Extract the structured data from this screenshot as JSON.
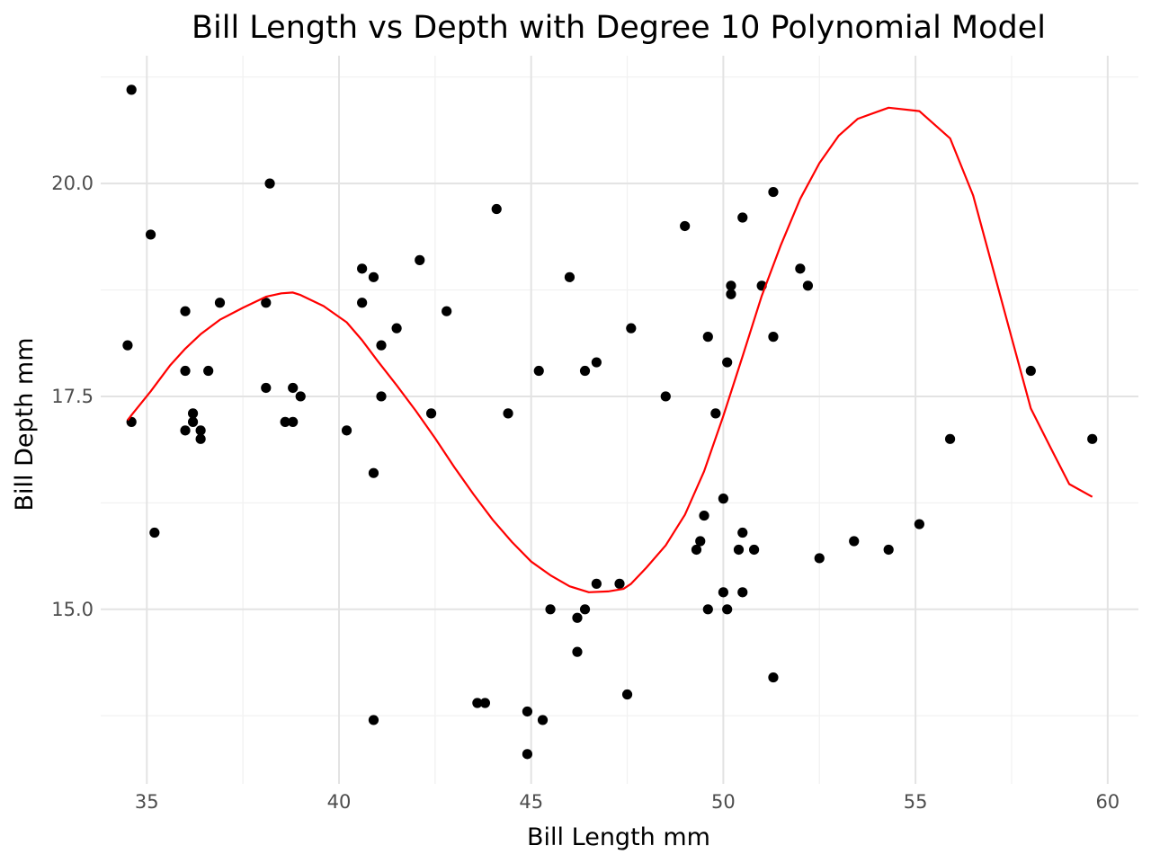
{
  "chart_data": {
    "type": "scatter",
    "title": "Bill Length vs Depth with Degree 10 Polynomial Model",
    "xlabel": "Bill Length mm",
    "ylabel": "Bill Depth mm",
    "xlim": [
      33.8,
      60.8
    ],
    "ylim": [
      12.95,
      21.5
    ],
    "x_ticks": [
      35,
      40,
      45,
      50,
      55,
      60
    ],
    "x_tick_labels": [
      "35",
      "40",
      "45",
      "50",
      "55",
      "60"
    ],
    "x_minor_ticks": [
      37.5,
      42.5,
      47.5,
      52.5,
      57.5
    ],
    "y_ticks": [
      15.0,
      17.5,
      20.0
    ],
    "y_tick_labels": [
      "15.0",
      "17.5",
      "20.0"
    ],
    "y_minor_ticks": [
      13.75,
      16.25,
      18.75,
      21.25
    ],
    "grid": true,
    "point_color": "#000000",
    "line_color": "#ff0000",
    "points": [
      [
        34.6,
        21.1
      ],
      [
        34.5,
        18.1
      ],
      [
        34.6,
        17.2
      ],
      [
        35.1,
        19.4
      ],
      [
        35.2,
        15.9
      ],
      [
        36.0,
        18.5
      ],
      [
        36.0,
        17.8
      ],
      [
        36.0,
        17.1
      ],
      [
        36.2,
        17.3
      ],
      [
        36.2,
        17.2
      ],
      [
        36.4,
        17.1
      ],
      [
        36.4,
        17.0
      ],
      [
        36.6,
        17.8
      ],
      [
        36.9,
        18.6
      ],
      [
        38.1,
        18.6
      ],
      [
        38.1,
        17.6
      ],
      [
        38.2,
        20.0
      ],
      [
        38.6,
        17.2
      ],
      [
        38.8,
        17.6
      ],
      [
        38.8,
        17.2
      ],
      [
        39.0,
        17.5
      ],
      [
        40.2,
        17.1
      ],
      [
        40.6,
        19.0
      ],
      [
        40.6,
        18.6
      ],
      [
        40.9,
        18.9
      ],
      [
        40.9,
        16.6
      ],
      [
        40.9,
        13.7
      ],
      [
        41.1,
        18.1
      ],
      [
        41.1,
        17.5
      ],
      [
        41.5,
        18.3
      ],
      [
        42.1,
        19.1
      ],
      [
        42.4,
        17.3
      ],
      [
        42.8,
        18.5
      ],
      [
        43.6,
        13.9
      ],
      [
        43.8,
        13.9
      ],
      [
        44.1,
        19.7
      ],
      [
        44.4,
        17.3
      ],
      [
        44.9,
        13.8
      ],
      [
        44.9,
        13.3
      ],
      [
        45.2,
        17.8
      ],
      [
        45.3,
        13.7
      ],
      [
        45.5,
        15.0
      ],
      [
        46.0,
        18.9
      ],
      [
        46.2,
        14.9
      ],
      [
        46.2,
        14.5
      ],
      [
        46.4,
        17.8
      ],
      [
        46.4,
        15.0
      ],
      [
        46.7,
        17.9
      ],
      [
        46.7,
        15.3
      ],
      [
        47.3,
        15.3
      ],
      [
        47.5,
        14.0
      ],
      [
        47.6,
        18.3
      ],
      [
        48.5,
        17.5
      ],
      [
        49.0,
        19.5
      ],
      [
        49.3,
        15.7
      ],
      [
        49.4,
        15.8
      ],
      [
        49.5,
        16.1
      ],
      [
        49.6,
        18.2
      ],
      [
        49.6,
        15.0
      ],
      [
        49.8,
        17.3
      ],
      [
        50.0,
        16.3
      ],
      [
        50.0,
        15.2
      ],
      [
        50.1,
        17.9
      ],
      [
        50.1,
        15.0
      ],
      [
        50.2,
        18.8
      ],
      [
        50.2,
        18.7
      ],
      [
        50.4,
        15.7
      ],
      [
        50.5,
        19.6
      ],
      [
        50.5,
        15.9
      ],
      [
        50.5,
        15.2
      ],
      [
        50.8,
        15.7
      ],
      [
        51.0,
        18.8
      ],
      [
        51.3,
        19.9
      ],
      [
        51.3,
        18.2
      ],
      [
        51.3,
        14.2
      ],
      [
        52.0,
        19.0
      ],
      [
        52.2,
        18.8
      ],
      [
        52.5,
        15.6
      ],
      [
        53.4,
        15.8
      ],
      [
        54.3,
        15.7
      ],
      [
        55.1,
        16.0
      ],
      [
        55.9,
        17.0
      ],
      [
        58.0,
        17.8
      ],
      [
        59.6,
        17.0
      ]
    ],
    "fit": {
      "name": "Degree 10 Polynomial Model",
      "x": [
        34.5,
        34.6,
        35.1,
        35.6,
        36.0,
        36.4,
        36.9,
        37.5,
        38.1,
        38.5,
        38.8,
        39.0,
        39.6,
        40.2,
        40.6,
        41.0,
        41.5,
        42.0,
        42.5,
        43.0,
        43.5,
        44.0,
        44.5,
        45.0,
        45.5,
        46.0,
        46.5,
        47.0,
        47.4,
        47.6,
        48.0,
        48.5,
        49.0,
        49.5,
        50.0,
        50.5,
        51.0,
        51.5,
        52.0,
        52.5,
        53.0,
        53.5,
        54.3,
        55.1,
        55.9,
        56.5,
        57.5,
        58.0,
        58.5,
        59.0,
        59.6
      ],
      "y": [
        17.22,
        17.28,
        17.56,
        17.86,
        18.06,
        18.23,
        18.4,
        18.54,
        18.67,
        18.71,
        18.72,
        18.69,
        18.56,
        18.37,
        18.16,
        17.92,
        17.63,
        17.33,
        17.01,
        16.67,
        16.35,
        16.05,
        15.79,
        15.56,
        15.4,
        15.27,
        15.2,
        15.21,
        15.24,
        15.3,
        15.49,
        15.75,
        16.11,
        16.62,
        17.27,
        17.97,
        18.68,
        19.28,
        19.82,
        20.24,
        20.56,
        20.76,
        20.89,
        20.85,
        20.53,
        19.86,
        18.19,
        17.36,
        16.91,
        16.47,
        16.32
      ]
    }
  }
}
